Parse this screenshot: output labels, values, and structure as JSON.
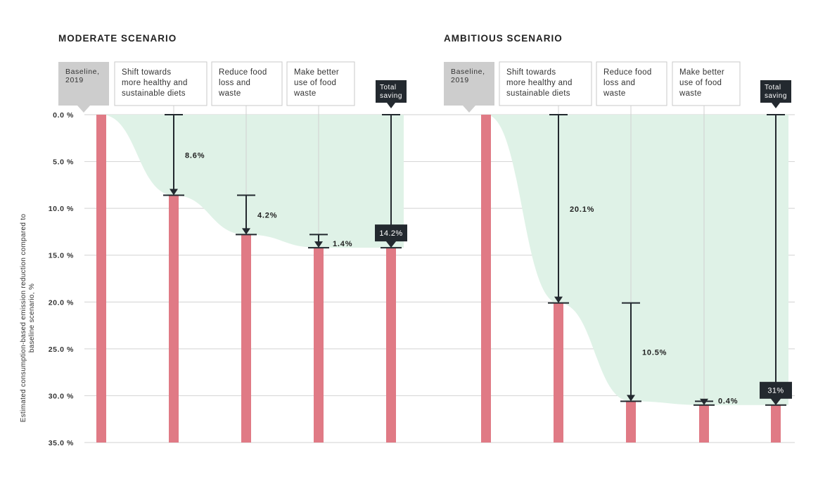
{
  "chart_data": {
    "type": "bar",
    "ylabel_lines": [
      "Estimated consumption-based emission reduction compared to",
      "baseline scenario, %"
    ],
    "ylim": [
      0,
      35
    ],
    "yticks": [
      0,
      5,
      10,
      15,
      20,
      25,
      30,
      35
    ],
    "ytick_labels": [
      "0.0 %",
      "5.0 %",
      "10.0 %",
      "15.0 %",
      "20.0 %",
      "25.0 %",
      "30.0 %",
      "35.0 %"
    ],
    "grid": "horizontal",
    "colors": {
      "bar": "#e07a85",
      "area": "#dff2e7",
      "marker": "#23292f",
      "baseline_box": "#cdcdcd",
      "box_border": "#c8c8c8"
    },
    "baseline_label": [
      "Baseline,",
      "2019"
    ],
    "total_label": [
      "Total",
      "saving"
    ],
    "panels": [
      {
        "title": "MODERATE SCENARIO",
        "categories": [
          [
            "Shift towards",
            "more healthy and",
            "sustainable diets"
          ],
          [
            "Reduce food",
            "loss and",
            "waste"
          ],
          [
            "Make better",
            "use of food",
            "waste"
          ]
        ],
        "values": [
          8.6,
          4.2,
          1.4
        ],
        "value_labels": [
          "8.6%",
          "4.2%",
          "1.4%"
        ],
        "cumulative": [
          8.6,
          12.8,
          14.2
        ],
        "total": 14.2,
        "total_label": "14.2%"
      },
      {
        "title": "AMBITIOUS SCENARIO",
        "categories": [
          [
            "Shift towards",
            "more healthy and",
            "sustainable diets"
          ],
          [
            "Reduce food",
            "loss and",
            "waste"
          ],
          [
            "Make better",
            "use of food",
            "waste"
          ]
        ],
        "values": [
          20.1,
          10.5,
          0.4
        ],
        "value_labels": [
          "20.1%",
          "10.5%",
          "0.4%"
        ],
        "cumulative": [
          20.1,
          30.6,
          31.0
        ],
        "total": 31,
        "total_label": "31%"
      }
    ]
  }
}
